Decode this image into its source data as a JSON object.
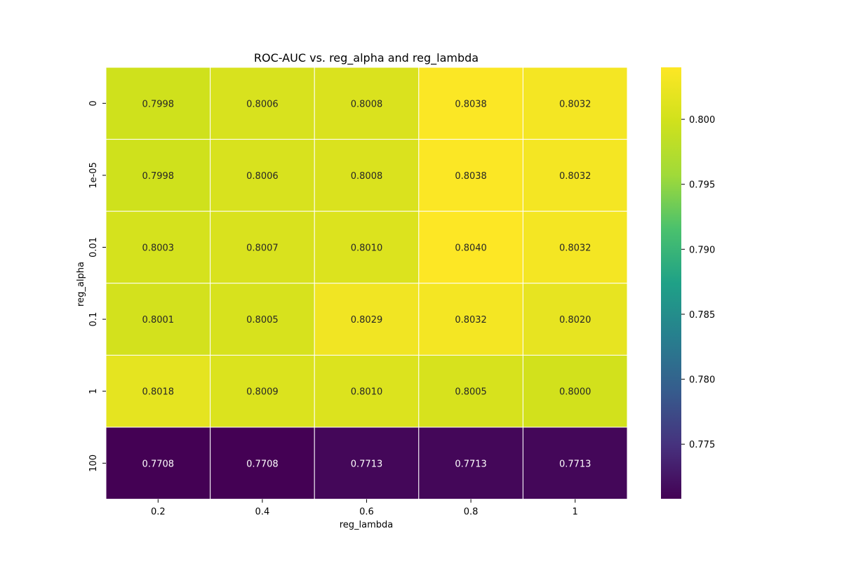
{
  "chart_data": {
    "type": "heatmap",
    "title": "ROC-AUC vs. reg_alpha and reg_lambda",
    "xlabel": "reg_lambda",
    "ylabel": "reg_alpha",
    "x": [
      "0.2",
      "0.4",
      "0.6",
      "0.8",
      "1"
    ],
    "y": [
      "0",
      "1e-05",
      "0.01",
      "0.1",
      "1",
      "100"
    ],
    "values": [
      [
        0.7998,
        0.8006,
        0.8008,
        0.8038,
        0.8032
      ],
      [
        0.7998,
        0.8006,
        0.8008,
        0.8038,
        0.8032
      ],
      [
        0.8003,
        0.8007,
        0.801,
        0.804,
        0.8032
      ],
      [
        0.8001,
        0.8005,
        0.8029,
        0.8032,
        0.802
      ],
      [
        0.8018,
        0.8009,
        0.801,
        0.8005,
        0.8
      ],
      [
        0.7708,
        0.7708,
        0.7713,
        0.7713,
        0.7713
      ]
    ],
    "value_format": "0.0000",
    "colormap": "viridis",
    "colorbar": {
      "min": 0.7708,
      "max": 0.804,
      "ticks": [
        0.775,
        0.78,
        0.785,
        0.79,
        0.795,
        0.8
      ]
    },
    "grid": false,
    "legend": "colorbar-right"
  }
}
